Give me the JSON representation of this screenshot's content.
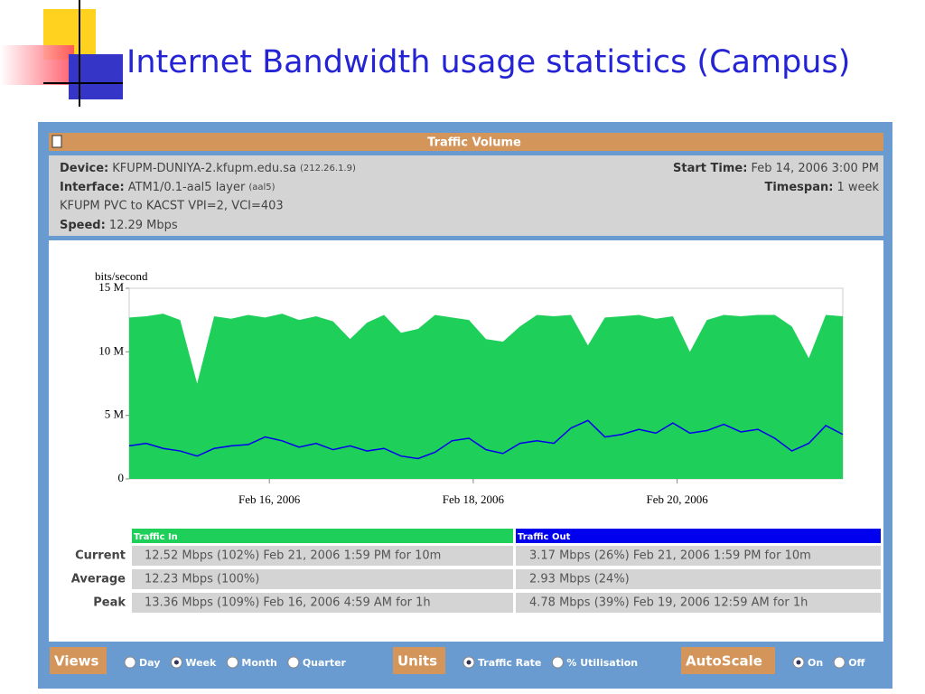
{
  "header": {
    "title": "Internet Bandwidth usage statistics (Campus)"
  },
  "panel": {
    "title": "Traffic Volume",
    "device": {
      "label": "Device:",
      "value": "KFUPM-DUNIYA-2.kfupm.edu.sa",
      "note": "(212.26.1.9)"
    },
    "interface": {
      "label": "Interface:",
      "value": "ATM1/0.1-aal5 layer",
      "note": "(aal5)"
    },
    "description": "KFUPM PVC to KACST VPI=2, VCI=403",
    "speed": {
      "label": "Speed:",
      "value": "12.29 Mbps"
    },
    "start_time": {
      "label": "Start Time:",
      "value": "Feb 14, 2006 3:00 PM"
    },
    "timespan": {
      "label": "Timespan:",
      "value": "1 week"
    }
  },
  "chart_data": {
    "type": "area",
    "y_label": "bits/second",
    "x": [
      "2006-02-14T15:00",
      "2006-02-14T19:00",
      "2006-02-14T23:00",
      "2006-02-15T03:00",
      "2006-02-15T07:00",
      "2006-02-15T11:00",
      "2006-02-15T15:00",
      "2006-02-15T19:00",
      "2006-02-15T23:00",
      "2006-02-16T03:00",
      "2006-02-16T07:00",
      "2006-02-16T11:00",
      "2006-02-16T15:00",
      "2006-02-16T19:00",
      "2006-02-16T23:00",
      "2006-02-17T03:00",
      "2006-02-17T07:00",
      "2006-02-17T11:00",
      "2006-02-17T15:00",
      "2006-02-17T19:00",
      "2006-02-17T23:00",
      "2006-02-18T03:00",
      "2006-02-18T07:00",
      "2006-02-18T11:00",
      "2006-02-18T15:00",
      "2006-02-18T19:00",
      "2006-02-18T23:00",
      "2006-02-19T03:00",
      "2006-02-19T07:00",
      "2006-02-19T11:00",
      "2006-02-19T15:00",
      "2006-02-19T19:00",
      "2006-02-19T23:00",
      "2006-02-20T03:00",
      "2006-02-20T07:00",
      "2006-02-20T11:00",
      "2006-02-20T15:00",
      "2006-02-20T19:00",
      "2006-02-20T23:00",
      "2006-02-21T03:00",
      "2006-02-21T07:00",
      "2006-02-21T11:00",
      "2006-02-21T15:00"
    ],
    "series": [
      {
        "name": "Traffic In",
        "color": "#1ecf5a",
        "values": [
          12700000,
          12800000,
          13000000,
          12500000,
          7500000,
          12800000,
          12600000,
          12900000,
          12700000,
          13000000,
          12500000,
          12800000,
          12400000,
          11000000,
          12300000,
          12900000,
          11500000,
          11800000,
          12900000,
          12700000,
          12500000,
          11000000,
          10800000,
          12000000,
          12900000,
          12800000,
          12900000,
          10500000,
          12700000,
          12800000,
          12900000,
          12600000,
          12800000,
          10000000,
          12500000,
          12900000,
          12800000,
          12900000,
          12900000,
          12000000,
          9500000,
          12900000,
          12800000
        ]
      },
      {
        "name": "Traffic Out",
        "color": "#0000ee",
        "values": [
          2600000,
          2800000,
          2400000,
          2200000,
          1800000,
          2400000,
          2600000,
          2700000,
          3300000,
          3000000,
          2500000,
          2800000,
          2300000,
          2600000,
          2200000,
          2400000,
          1800000,
          1600000,
          2100000,
          3000000,
          3200000,
          2300000,
          2000000,
          2800000,
          3000000,
          2800000,
          4000000,
          4600000,
          3300000,
          3500000,
          3900000,
          3600000,
          4400000,
          3600000,
          3800000,
          4300000,
          3700000,
          3900000,
          3200000,
          2200000,
          2800000,
          4200000,
          3500000
        ]
      }
    ],
    "xlim": [
      "2006-02-14T15:00",
      "2006-02-21T15:00"
    ],
    "xticks": [
      {
        "value": "2006-02-16T00:00",
        "label": "Feb 16, 2006"
      },
      {
        "value": "2006-02-18T00:00",
        "label": "Feb 18, 2006"
      },
      {
        "value": "2006-02-20T00:00",
        "label": "Feb 20, 2006"
      }
    ],
    "ylim": [
      0,
      15000000
    ],
    "yticks": [
      0,
      {
        "value": 5000000,
        "label": "5 M"
      },
      {
        "value": 10000000,
        "label": "10 M"
      },
      {
        "value": 15000000,
        "label": "15 M"
      }
    ]
  },
  "table": {
    "rows": [
      {
        "label": "Current",
        "in": "12.52 Mbps (102%) Feb 21, 2006 1:59 PM for 10m",
        "out": "3.17 Mbps (26%) Feb 21, 2006 1:59 PM for 10m"
      },
      {
        "label": "Average",
        "in": "12.23 Mbps (100%)",
        "out": "2.93 Mbps (24%)"
      },
      {
        "label": "Peak",
        "in": "13.36 Mbps (109%) Feb 16, 2006 4:59 AM for 1h",
        "out": "4.78 Mbps (39%) Feb 19, 2006 12:59 AM for 1h"
      }
    ]
  },
  "controls": [
    {
      "label": "Views",
      "options": [
        "Day",
        "Week",
        "Month",
        "Quarter"
      ],
      "selected": 1
    },
    {
      "label": "Units",
      "options": [
        "Traffic Rate",
        "% Utilisation"
      ],
      "selected": 0
    },
    {
      "label": "AutoScale",
      "options": [
        "On",
        "Off"
      ],
      "selected": 0
    }
  ]
}
